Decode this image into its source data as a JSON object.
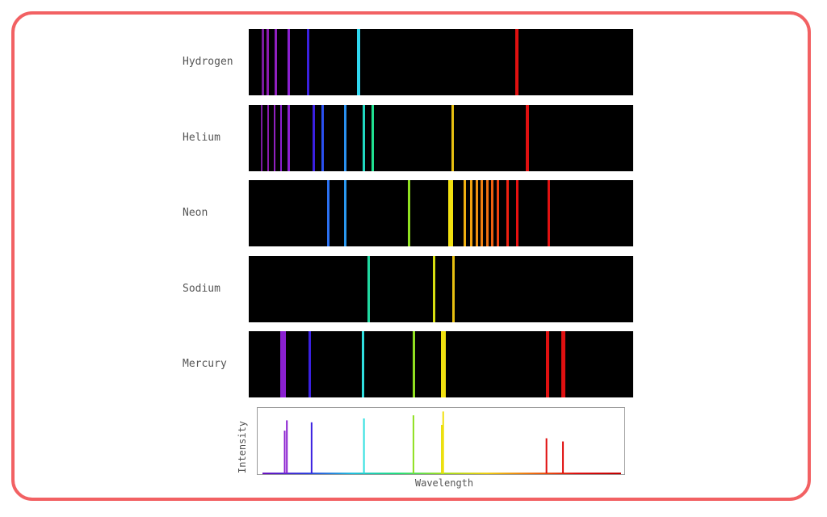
{
  "spectra": [
    {
      "name": "Hydrogen",
      "lines": [
        {
          "pos": 0.036,
          "color": "#7a1aa0",
          "w": 0.006
        },
        {
          "pos": 0.05,
          "color": "#8a1ab0",
          "w": 0.006
        },
        {
          "pos": 0.07,
          "color": "#9020c0",
          "w": 0.006
        },
        {
          "pos": 0.103,
          "color": "#8a20d0",
          "w": 0.007
        },
        {
          "pos": 0.155,
          "color": "#3a20e0",
          "w": 0.007
        },
        {
          "pos": 0.285,
          "color": "#30d8f0",
          "w": 0.008
        },
        {
          "pos": 0.698,
          "color": "#e01010",
          "w": 0.008
        }
      ]
    },
    {
      "name": "Helium",
      "lines": [
        {
          "pos": 0.034,
          "color": "#7a1aa0",
          "w": 0.005
        },
        {
          "pos": 0.05,
          "color": "#8a1ab0",
          "w": 0.005
        },
        {
          "pos": 0.067,
          "color": "#9020c0",
          "w": 0.005
        },
        {
          "pos": 0.084,
          "color": "#8a20d0",
          "w": 0.005
        },
        {
          "pos": 0.105,
          "color": "#8a20d0",
          "w": 0.006
        },
        {
          "pos": 0.17,
          "color": "#3a20e0",
          "w": 0.006
        },
        {
          "pos": 0.193,
          "color": "#2a50f0",
          "w": 0.006
        },
        {
          "pos": 0.25,
          "color": "#2a90f0",
          "w": 0.007
        },
        {
          "pos": 0.3,
          "color": "#20d8c0",
          "w": 0.007
        },
        {
          "pos": 0.323,
          "color": "#20e090",
          "w": 0.006
        },
        {
          "pos": 0.53,
          "color": "#e8c010",
          "w": 0.007
        },
        {
          "pos": 0.724,
          "color": "#e01010",
          "w": 0.008
        }
      ]
    },
    {
      "name": "Neon",
      "lines": [
        {
          "pos": 0.206,
          "color": "#2a70f0",
          "w": 0.007
        },
        {
          "pos": 0.251,
          "color": "#2a98f0",
          "w": 0.007
        },
        {
          "pos": 0.416,
          "color": "#90e020",
          "w": 0.007
        },
        {
          "pos": 0.525,
          "color": "#f0e010",
          "w": 0.012
        },
        {
          "pos": 0.563,
          "color": "#f0b010",
          "w": 0.006
        },
        {
          "pos": 0.578,
          "color": "#f0a010",
          "w": 0.006
        },
        {
          "pos": 0.593,
          "color": "#f09010",
          "w": 0.006
        },
        {
          "pos": 0.607,
          "color": "#f08010",
          "w": 0.006
        },
        {
          "pos": 0.62,
          "color": "#f07010",
          "w": 0.006
        },
        {
          "pos": 0.634,
          "color": "#f06010",
          "w": 0.006
        },
        {
          "pos": 0.648,
          "color": "#f04010",
          "w": 0.007
        },
        {
          "pos": 0.674,
          "color": "#f02010",
          "w": 0.007
        },
        {
          "pos": 0.698,
          "color": "#e81010",
          "w": 0.007
        },
        {
          "pos": 0.781,
          "color": "#e01010",
          "w": 0.007
        }
      ]
    },
    {
      "name": "Sodium",
      "lines": [
        {
          "pos": 0.311,
          "color": "#20d8a0",
          "w": 0.007
        },
        {
          "pos": 0.483,
          "color": "#d8e010",
          "w": 0.006
        },
        {
          "pos": 0.533,
          "color": "#e8c010",
          "w": 0.007
        }
      ]
    },
    {
      "name": "Mercury",
      "lines": [
        {
          "pos": 0.09,
          "color": "#8a20d0",
          "w": 0.014
        },
        {
          "pos": 0.158,
          "color": "#3a20e0",
          "w": 0.007
        },
        {
          "pos": 0.297,
          "color": "#30e0e0",
          "w": 0.007
        },
        {
          "pos": 0.43,
          "color": "#90e020",
          "w": 0.007
        },
        {
          "pos": 0.507,
          "color": "#f0e010",
          "w": 0.012
        },
        {
          "pos": 0.778,
          "color": "#e01010",
          "w": 0.008
        },
        {
          "pos": 0.818,
          "color": "#e01010",
          "w": 0.01
        }
      ]
    }
  ],
  "intensity_chart": {
    "ylabel": "Intensity",
    "xlabel": "Wavelength",
    "peaks": [
      {
        "pos": 0.062,
        "height": 0.67,
        "color": "#8a20d0"
      },
      {
        "pos": 0.068,
        "height": 0.83,
        "color": "#8a20d0"
      },
      {
        "pos": 0.137,
        "height": 0.8,
        "color": "#3a20e0"
      },
      {
        "pos": 0.283,
        "height": 0.86,
        "color": "#30e0e0"
      },
      {
        "pos": 0.421,
        "height": 0.91,
        "color": "#90e020"
      },
      {
        "pos": 0.5,
        "height": 0.76,
        "color": "#e8e010"
      },
      {
        "pos": 0.504,
        "height": 0.97,
        "color": "#f0e010"
      },
      {
        "pos": 0.792,
        "height": 0.55,
        "color": "#e01010"
      },
      {
        "pos": 0.838,
        "height": 0.5,
        "color": "#e01010"
      }
    ],
    "baseline_colors": [
      "#6a10c0",
      "#3040e0",
      "#20c0e0",
      "#20e080",
      "#a0e020",
      "#f0d010",
      "#f07010",
      "#e01010",
      "#c00000"
    ]
  }
}
